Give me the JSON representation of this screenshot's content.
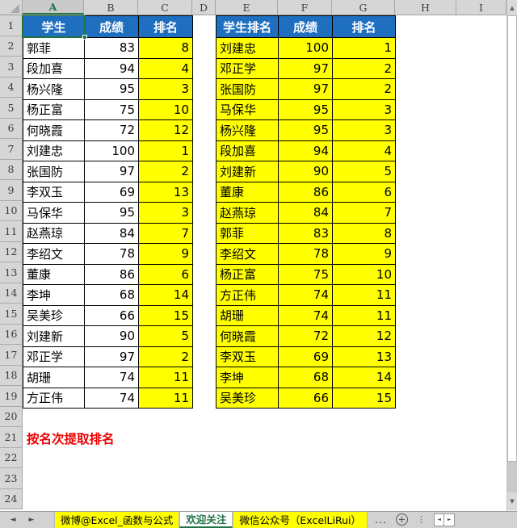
{
  "sheet": {
    "column_headers": [
      "A",
      "B",
      "C",
      "D",
      "E",
      "F",
      "G",
      "H",
      "I"
    ],
    "row_numbers": [
      "1",
      "2",
      "3",
      "4",
      "5",
      "6",
      "7",
      "8",
      "9",
      "10",
      "11",
      "12",
      "13",
      "14",
      "15",
      "16",
      "17",
      "18",
      "19",
      "20",
      "21",
      "22",
      "23",
      "24"
    ],
    "selected_cell": "A1",
    "note": "按名次提取排名"
  },
  "left_table": {
    "headers": [
      "学生",
      "成绩",
      "排名"
    ],
    "rows": [
      {
        "name": "郭菲",
        "score": "83",
        "rank": "8"
      },
      {
        "name": "段加喜",
        "score": "94",
        "rank": "4"
      },
      {
        "name": "杨兴隆",
        "score": "95",
        "rank": "3"
      },
      {
        "name": "杨正富",
        "score": "75",
        "rank": "10"
      },
      {
        "name": "何晓霞",
        "score": "72",
        "rank": "12"
      },
      {
        "name": "刘建忠",
        "score": "100",
        "rank": "1"
      },
      {
        "name": "张国防",
        "score": "97",
        "rank": "2"
      },
      {
        "name": "李双玉",
        "score": "69",
        "rank": "13"
      },
      {
        "name": "马保华",
        "score": "95",
        "rank": "3"
      },
      {
        "name": "赵燕琼",
        "score": "84",
        "rank": "7"
      },
      {
        "name": "李绍文",
        "score": "78",
        "rank": "9"
      },
      {
        "name": "董康",
        "score": "86",
        "rank": "6"
      },
      {
        "name": "李坤",
        "score": "68",
        "rank": "14"
      },
      {
        "name": "吴美珍",
        "score": "66",
        "rank": "15"
      },
      {
        "name": "刘建新",
        "score": "90",
        "rank": "5"
      },
      {
        "name": "邓正学",
        "score": "97",
        "rank": "2"
      },
      {
        "name": "胡珊",
        "score": "74",
        "rank": "11"
      },
      {
        "name": "方正伟",
        "score": "74",
        "rank": "11"
      }
    ]
  },
  "right_table": {
    "headers": [
      "学生排名",
      "成绩",
      "排名"
    ],
    "rows": [
      {
        "name": "刘建忠",
        "score": "100",
        "rank": "1"
      },
      {
        "name": "邓正学",
        "score": "97",
        "rank": "2"
      },
      {
        "name": "张国防",
        "score": "97",
        "rank": "2"
      },
      {
        "name": "马保华",
        "score": "95",
        "rank": "3"
      },
      {
        "name": "杨兴隆",
        "score": "95",
        "rank": "3"
      },
      {
        "name": "段加喜",
        "score": "94",
        "rank": "4"
      },
      {
        "name": "刘建新",
        "score": "90",
        "rank": "5"
      },
      {
        "name": "董康",
        "score": "86",
        "rank": "6"
      },
      {
        "name": "赵燕琼",
        "score": "84",
        "rank": "7"
      },
      {
        "name": "郭菲",
        "score": "83",
        "rank": "8"
      },
      {
        "name": "李绍文",
        "score": "78",
        "rank": "9"
      },
      {
        "name": "杨正富",
        "score": "75",
        "rank": "10"
      },
      {
        "name": "方正伟",
        "score": "74",
        "rank": "11"
      },
      {
        "name": "胡珊",
        "score": "74",
        "rank": "11"
      },
      {
        "name": "何晓霞",
        "score": "72",
        "rank": "12"
      },
      {
        "name": "李双玉",
        "score": "69",
        "rank": "13"
      },
      {
        "name": "李坤",
        "score": "68",
        "rank": "14"
      },
      {
        "name": "吴美珍",
        "score": "66",
        "rank": "15"
      }
    ]
  },
  "tab_bar": {
    "tabs": [
      {
        "label": "微博@Excel_函数与公式"
      },
      {
        "label": "欢迎关注"
      },
      {
        "label": "微信公众号（ExcelLiRui）"
      }
    ],
    "overflow_label": "...",
    "new_sheet_label": "+"
  },
  "icons": {
    "scroll_up": "▲",
    "scroll_down": "▼",
    "tab_prev": "◄",
    "tab_next": "►",
    "hscroll_left": "◄",
    "hscroll_right": "►",
    "tab_options": "⋮"
  },
  "colors": {
    "header_blue": "#1E6FC0",
    "highlight_yellow": "#FFFF00",
    "selection_green": "#217346",
    "note_red": "#EE0000",
    "header_grey": "#D6D6D6"
  }
}
